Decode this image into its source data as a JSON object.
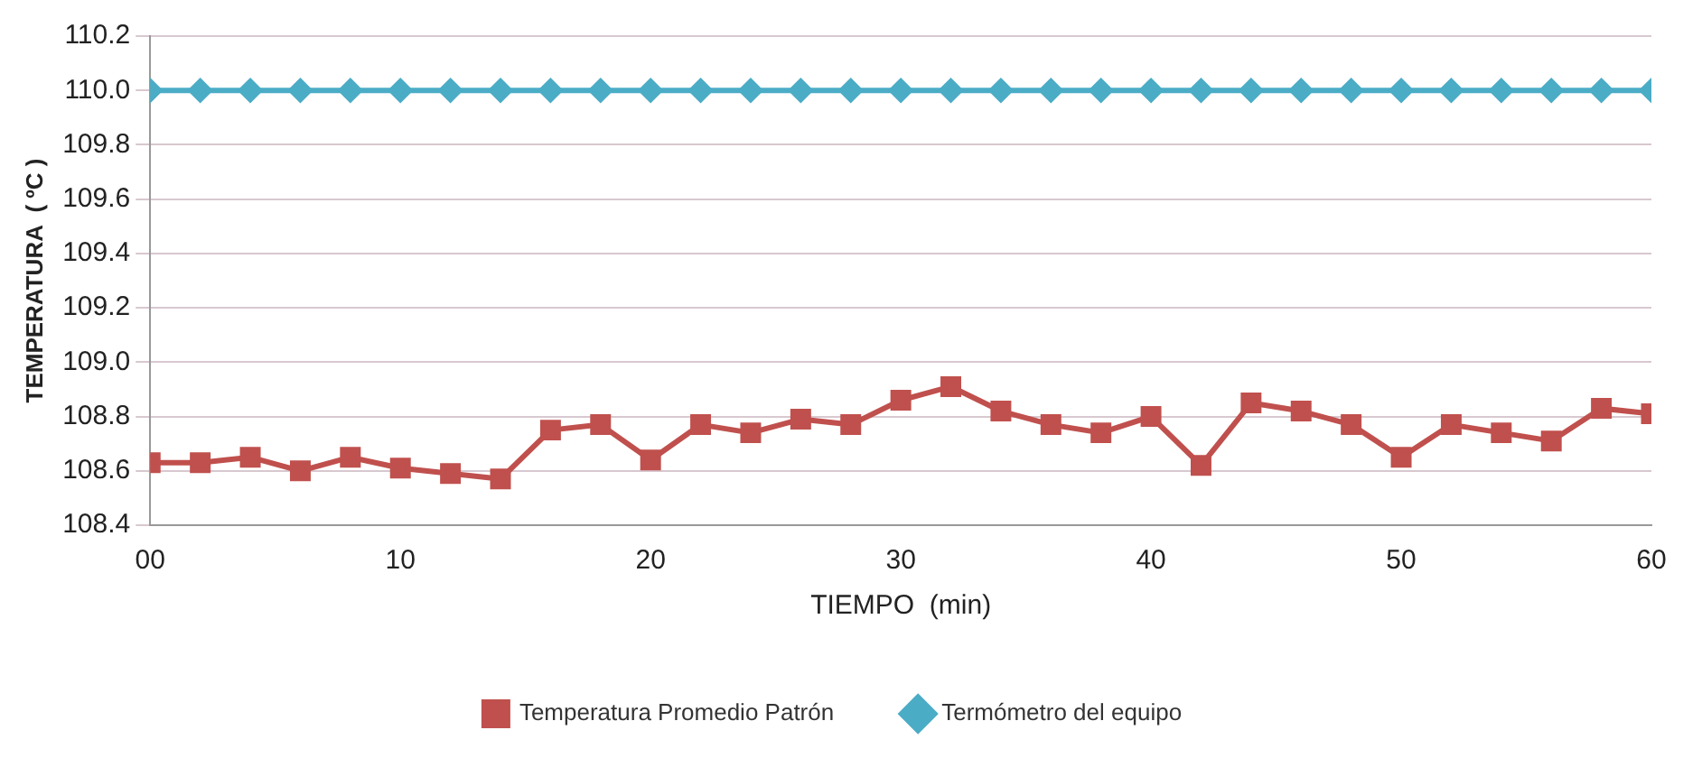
{
  "chart_data": {
    "type": "line",
    "xlabel": "TIEMPO  (min)",
    "ylabel": "TEMPERATURA  ( ºC )",
    "x": [
      0,
      2,
      4,
      6,
      8,
      10,
      12,
      14,
      16,
      18,
      20,
      22,
      24,
      26,
      28,
      30,
      32,
      34,
      36,
      38,
      40,
      42,
      44,
      46,
      48,
      50,
      52,
      54,
      56,
      58,
      60
    ],
    "series": [
      {
        "name": "Temperatura Promedio Patrón",
        "color": "#c0504d",
        "marker": "square",
        "values": [
          108.63,
          108.63,
          108.65,
          108.6,
          108.65,
          108.61,
          108.59,
          108.57,
          108.75,
          108.77,
          108.64,
          108.77,
          108.74,
          108.79,
          108.77,
          108.86,
          108.91,
          108.82,
          108.77,
          108.74,
          108.8,
          108.62,
          108.85,
          108.82,
          108.77,
          108.65,
          108.77,
          108.74,
          108.71,
          108.83,
          108.81
        ]
      },
      {
        "name": "Termómetro del equipo",
        "color": "#4bacc6",
        "marker": "diamond",
        "values": [
          110,
          110,
          110,
          110,
          110,
          110,
          110,
          110,
          110,
          110,
          110,
          110,
          110,
          110,
          110,
          110,
          110,
          110,
          110,
          110,
          110,
          110,
          110,
          110,
          110,
          110,
          110,
          110,
          110,
          110,
          110
        ]
      }
    ],
    "xlim": [
      0,
      60
    ],
    "xticks": [
      {
        "value": 0,
        "label": "00"
      },
      10,
      20,
      30,
      40,
      50,
      60
    ],
    "ylim": [
      108.4,
      110.2
    ],
    "yticks": [
      {
        "value": 108.4,
        "label": "108.4"
      },
      {
        "value": 108.6,
        "label": "108.6"
      },
      {
        "value": 108.8,
        "label": "108.8"
      },
      {
        "value": 109,
        "label": "109.0"
      },
      {
        "value": 109.2,
        "label": "109.2"
      },
      {
        "value": 109.4,
        "label": "109.4"
      },
      {
        "value": 109.6,
        "label": "109.6"
      },
      {
        "value": 109.8,
        "label": "109.8"
      },
      {
        "value": 110,
        "label": "110.0"
      },
      {
        "value": 110.2,
        "label": "110.2"
      }
    ],
    "grid": "y",
    "legend": "bottom"
  }
}
